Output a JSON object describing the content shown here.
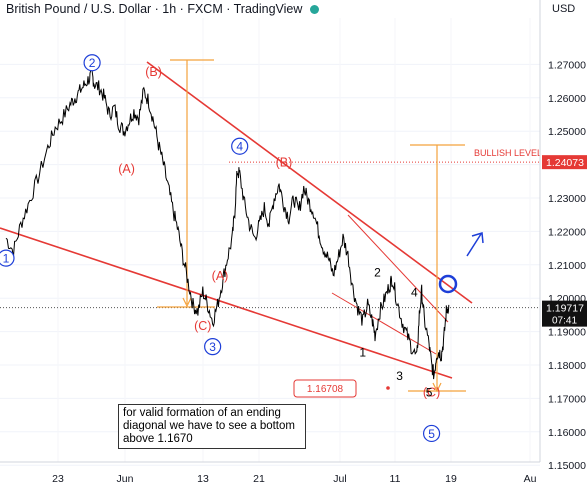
{
  "header": {
    "title": "British Pound / U.S. Dollar · 1h · FXCM · TradingView",
    "currency": "USD"
  },
  "chart_data": {
    "type": "line",
    "title": "British Pound / U.S. Dollar · 1h · FXCM · TradingView",
    "ylim": [
      1.143,
      1.285
    ],
    "y_ticks": [
      1.15,
      1.16,
      1.17,
      1.18,
      1.19,
      1.2,
      1.21,
      1.22,
      1.23,
      1.24,
      1.25,
      1.26,
      1.27
    ],
    "y_tick_labels": [
      "1.15000",
      "1.16000",
      "1.17000",
      "1.18000",
      "1.19000",
      "1.20000",
      "1.21000",
      "1.22000",
      "1.23000",
      "1.24000",
      "1.25000",
      "1.26000",
      "1.27000"
    ],
    "x_ticks": [
      "23",
      "Jun",
      "13",
      "21",
      "Jul",
      "11",
      "19",
      "Au"
    ],
    "series": [
      {
        "values": [
          [
            0,
            1.218
          ],
          [
            3,
            1.214
          ],
          [
            6,
            1.222
          ],
          [
            9,
            1.228
          ],
          [
            13,
            1.236
          ],
          [
            17,
            1.245
          ],
          [
            20,
            1.251
          ],
          [
            23,
            1.254
          ],
          [
            26,
            1.258
          ],
          [
            28,
            1.26
          ],
          [
            30,
            1.262
          ],
          [
            32,
            1.264
          ],
          [
            34,
            1.266
          ],
          [
            35,
            1.267
          ],
          [
            36,
            1.264
          ],
          [
            38,
            1.263
          ],
          [
            40,
            1.26
          ],
          [
            42,
            1.255
          ],
          [
            44,
            1.257
          ],
          [
            46,
            1.252
          ],
          [
            48,
            1.25
          ],
          [
            50,
            1.253
          ],
          [
            52,
            1.256
          ],
          [
            54,
            1.254
          ],
          [
            56,
            1.262
          ],
          [
            58,
            1.259
          ],
          [
            60,
            1.253
          ],
          [
            62,
            1.246
          ],
          [
            64,
            1.24
          ],
          [
            66,
            1.233
          ],
          [
            68,
            1.226
          ],
          [
            70,
            1.22
          ],
          [
            72,
            1.212
          ],
          [
            74,
            1.205
          ],
          [
            76,
            1.198
          ],
          [
            78,
            1.196
          ],
          [
            80,
            1.202
          ],
          [
            82,
            1.198
          ],
          [
            84,
            1.193
          ],
          [
            86,
            1.198
          ],
          [
            88,
            1.205
          ],
          [
            90,
            1.212
          ],
          [
            92,
            1.218
          ],
          [
            93,
            1.226
          ],
          [
            94,
            1.238
          ],
          [
            95,
            1.237
          ],
          [
            97,
            1.228
          ],
          [
            99,
            1.222
          ],
          [
            101,
            1.218
          ],
          [
            103,
            1.222
          ],
          [
            105,
            1.227
          ],
          [
            107,
            1.222
          ],
          [
            109,
            1.23
          ],
          [
            111,
            1.234
          ],
          [
            113,
            1.228
          ],
          [
            115,
            1.224
          ],
          [
            117,
            1.23
          ],
          [
            119,
            1.226
          ],
          [
            121,
            1.233
          ],
          [
            123,
            1.229
          ],
          [
            125,
            1.226
          ],
          [
            127,
            1.22
          ],
          [
            129,
            1.215
          ],
          [
            131,
            1.212
          ],
          [
            133,
            1.207
          ],
          [
            135,
            1.212
          ],
          [
            137,
            1.218
          ],
          [
            139,
            1.213
          ],
          [
            141,
            1.203
          ],
          [
            143,
            1.197
          ],
          [
            145,
            1.193
          ],
          [
            147,
            1.198
          ],
          [
            149,
            1.193
          ],
          [
            150,
            1.189
          ],
          [
            152,
            1.196
          ],
          [
            154,
            1.2
          ],
          [
            156,
            1.204
          ],
          [
            157,
            1.206
          ],
          [
            159,
            1.199
          ],
          [
            161,
            1.193
          ],
          [
            163,
            1.189
          ],
          [
            165,
            1.185
          ],
          [
            167,
            1.182
          ],
          [
            168,
            1.195
          ],
          [
            169,
            1.202
          ],
          [
            170,
            1.194
          ],
          [
            172,
            1.186
          ],
          [
            173,
            1.18
          ],
          [
            174,
            1.177
          ],
          [
            175,
            1.183
          ],
          [
            176,
            1.184
          ],
          [
            177,
            1.183
          ],
          [
            178,
            1.188
          ],
          [
            179,
            1.196
          ],
          [
            180,
            1.198
          ]
        ]
      }
    ],
    "reference_lines": [
      {
        "label": "BULLISH LEVEL",
        "value": 1.24073,
        "value_label": "1.24073",
        "color": "#e53935"
      }
    ],
    "last_price": {
      "value": 1.19717,
      "label": "1.19717",
      "countdown": "07:41"
    },
    "target_label": {
      "value": 1.16708,
      "label": "1.16708"
    },
    "wave_labels": {
      "circled": [
        {
          "text": "1",
          "x": 0,
          "y": 1.212
        },
        {
          "text": "2",
          "x": 35,
          "y": 1.2705
        },
        {
          "text": "3",
          "x": 84,
          "y": 1.1855
        },
        {
          "text": "4",
          "x": 95,
          "y": 1.2455
        },
        {
          "text": "5",
          "x": 173,
          "y": 1.1595
        }
      ],
      "red": [
        {
          "text": "(B)",
          "x": 60,
          "y": 1.2665
        },
        {
          "text": "(A)",
          "x": 49,
          "y": 1.2375
        },
        {
          "text": "(B)",
          "x": 113,
          "y": 1.2395
        },
        {
          "text": "(A)",
          "x": 87,
          "y": 1.2055
        },
        {
          "text": "(C)",
          "x": 80,
          "y": 1.1905
        },
        {
          "text": "(C)",
          "x": 173,
          "y": 1.1705
        }
      ],
      "black": [
        {
          "text": "2",
          "x": 151,
          "y": 1.2065
        },
        {
          "text": "4",
          "x": 166,
          "y": 1.2005
        },
        {
          "text": "1",
          "x": 145,
          "y": 1.1825
        },
        {
          "text": "3",
          "x": 160,
          "y": 1.1755
        },
        {
          "text": "5",
          "x": 172,
          "y": 1.1705
        }
      ]
    },
    "note": "for valid formation of an ending diagonal we have to see a bottom above 1.1670",
    "colors": {
      "price": "#000000",
      "trendline": "#e53935",
      "measure": "#f4a23c",
      "wave_circle": "#1e3fd8",
      "arrow": "#1e3fd8"
    }
  }
}
